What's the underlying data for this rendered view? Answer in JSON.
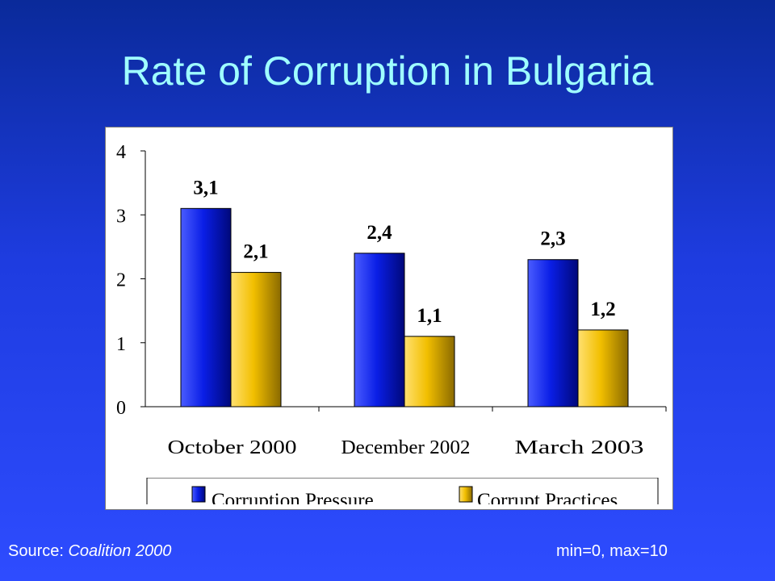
{
  "slide": {
    "title": "Rate of Corruption in Bulgaria",
    "source_prefix": "Source: ",
    "source_name": "Coalition 2000",
    "scale_note": "min=0, max=10"
  },
  "chart_data": {
    "type": "bar",
    "categories": [
      "October 2000",
      "December 2002",
      "March 2003"
    ],
    "series": [
      {
        "name": "Corruption Pressure",
        "values": [
          3.1,
          2.4,
          2.3
        ],
        "labels": [
          "3,1",
          "2,4",
          "2,3"
        ],
        "color": "#0a1ee6"
      },
      {
        "name": "Corrupt Practices",
        "values": [
          2.1,
          1.1,
          1.2
        ],
        "labels": [
          "2,1",
          "1,1",
          "1,2"
        ],
        "color": "#f2bf00"
      }
    ],
    "ylim": [
      0,
      4
    ],
    "yticks": [
      0,
      1,
      2,
      3,
      4
    ],
    "ytick_labels": [
      "0",
      "1",
      "2",
      "3",
      "4"
    ],
    "grid": false,
    "legend": "bottom"
  }
}
